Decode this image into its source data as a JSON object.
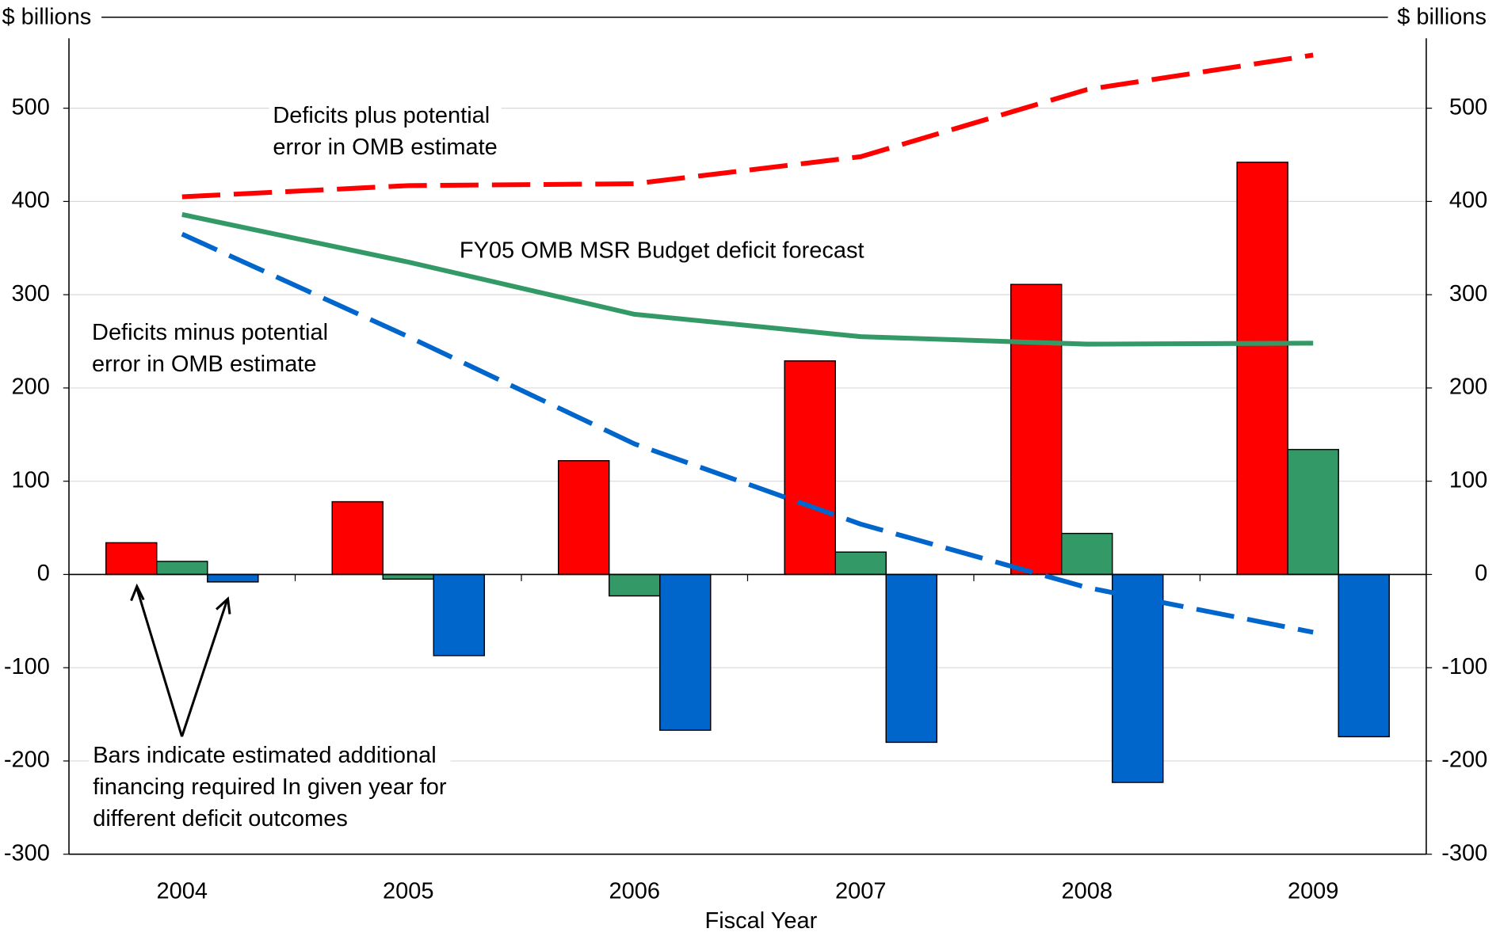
{
  "chart_data": {
    "type": "bar",
    "y_label_left": "$ billions",
    "y_label_right": "$ billions",
    "x_label": "Fiscal Year",
    "categories": [
      "2004",
      "2005",
      "2006",
      "2007",
      "2008",
      "2009"
    ],
    "ylim": [
      -300,
      575
    ],
    "yticks": [
      -300,
      -200,
      -100,
      0,
      100,
      200,
      300,
      400,
      500
    ],
    "grid": true,
    "series": [
      {
        "kind": "bar",
        "color": "#ff0000",
        "values": [
          34,
          78,
          122,
          229,
          311,
          442
        ]
      },
      {
        "kind": "bar",
        "color": "#339966",
        "values": [
          14,
          -5,
          -23,
          24,
          44,
          134
        ]
      },
      {
        "kind": "bar",
        "color": "#0066cc",
        "values": [
          -8,
          -87,
          -167,
          -180,
          -223,
          -174
        ]
      },
      {
        "kind": "line",
        "dashed": true,
        "color": "#ff0000",
        "values": [
          405,
          417,
          419,
          448,
          520,
          557
        ]
      },
      {
        "kind": "line",
        "dashed": false,
        "color": "#339966",
        "values": [
          386,
          335,
          279,
          255,
          247,
          248
        ]
      },
      {
        "kind": "line",
        "dashed": true,
        "color": "#0066cc",
        "values": [
          365,
          255,
          140,
          54,
          -14,
          -62
        ]
      }
    ],
    "annotations": [
      {
        "lines": [
          "Deficits plus potential",
          "error in OMB estimate"
        ]
      },
      {
        "lines": [
          "FY05 OMB MSR Budget deficit forecast"
        ]
      },
      {
        "lines": [
          "Deficits minus potential",
          "error in OMB estimate"
        ]
      },
      {
        "lines": [
          "Bars indicate estimated additional",
          "financing required In given year for",
          "different deficit outcomes"
        ]
      }
    ]
  }
}
